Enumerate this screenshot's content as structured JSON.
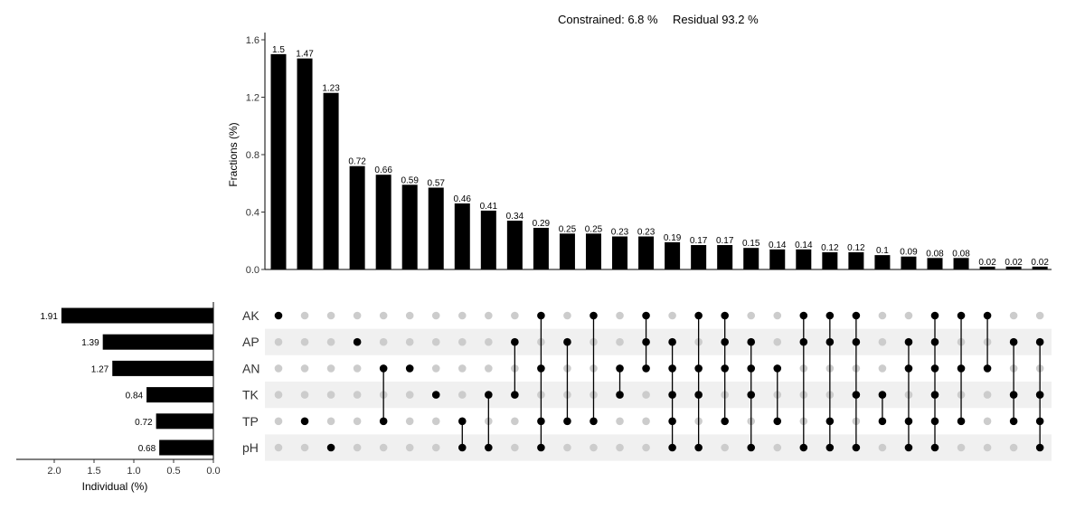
{
  "header": {
    "constrained_text": "Constrained: 6.8 %",
    "residual_text": "Residual 93.2 %"
  },
  "chart_data": {
    "type": "bar",
    "title": "",
    "ylabel": "Fractions (%)",
    "ylim": [
      0,
      1.6
    ],
    "yticks": [
      "0.0",
      "0.4",
      "0.8",
      "1.2",
      "1.6"
    ],
    "intersections": [
      {
        "value": 1.5,
        "label": "1.5",
        "sets": [
          "AK"
        ]
      },
      {
        "value": 1.47,
        "label": "1.47",
        "sets": [
          "TP"
        ]
      },
      {
        "value": 1.23,
        "label": "1.23",
        "sets": [
          "pH"
        ]
      },
      {
        "value": 0.72,
        "label": "0.72",
        "sets": [
          "AP"
        ]
      },
      {
        "value": 0.66,
        "label": "0.66",
        "sets": [
          "AN",
          "TP"
        ]
      },
      {
        "value": 0.59,
        "label": "0.59",
        "sets": [
          "AN"
        ]
      },
      {
        "value": 0.57,
        "label": "0.57",
        "sets": [
          "TK"
        ]
      },
      {
        "value": 0.46,
        "label": "0.46",
        "sets": [
          "TP",
          "pH"
        ]
      },
      {
        "value": 0.41,
        "label": "0.41",
        "sets": [
          "TK",
          "pH"
        ]
      },
      {
        "value": 0.34,
        "label": "0.34",
        "sets": [
          "AP",
          "TK"
        ]
      },
      {
        "value": 0.29,
        "label": "0.29",
        "sets": [
          "AK",
          "AN",
          "TP",
          "pH"
        ]
      },
      {
        "value": 0.25,
        "label": "0.25",
        "sets": [
          "AP",
          "TP"
        ]
      },
      {
        "value": 0.25,
        "label": "0.25",
        "sets": [
          "AK",
          "TP"
        ]
      },
      {
        "value": 0.23,
        "label": "0.23",
        "sets": [
          "AN",
          "TK"
        ]
      },
      {
        "value": 0.23,
        "label": "0.23",
        "sets": [
          "AK",
          "AP",
          "AN"
        ]
      },
      {
        "value": 0.19,
        "label": "0.19",
        "sets": [
          "AP",
          "AN",
          "TK",
          "TP",
          "pH"
        ]
      },
      {
        "value": 0.17,
        "label": "0.17",
        "sets": [
          "AK",
          "AN",
          "TK",
          "pH"
        ]
      },
      {
        "value": 0.17,
        "label": "0.17",
        "sets": [
          "AK",
          "AP",
          "AN",
          "TP"
        ]
      },
      {
        "value": 0.15,
        "label": "0.15",
        "sets": [
          "AP",
          "AN",
          "TK",
          "pH"
        ]
      },
      {
        "value": 0.14,
        "label": "0.14",
        "sets": [
          "AN",
          "TP"
        ]
      },
      {
        "value": 0.14,
        "label": "0.14",
        "sets": [
          "AK",
          "AP",
          "pH"
        ]
      },
      {
        "value": 0.12,
        "label": "0.12",
        "sets": [
          "AK",
          "AP",
          "TP",
          "pH"
        ]
      },
      {
        "value": 0.12,
        "label": "0.12",
        "sets": [
          "AK",
          "AP",
          "TK",
          "pH"
        ]
      },
      {
        "value": 0.1,
        "label": "0.1",
        "sets": [
          "TK",
          "TP"
        ]
      },
      {
        "value": 0.09,
        "label": "0.09",
        "sets": [
          "AP",
          "AN",
          "TP",
          "pH"
        ]
      },
      {
        "value": 0.08,
        "label": "0.08",
        "sets": [
          "AK",
          "AP",
          "AN",
          "TK",
          "TP",
          "pH"
        ]
      },
      {
        "value": 0.08,
        "label": "0.08",
        "sets": [
          "AK",
          "AN",
          "TP"
        ]
      },
      {
        "value": 0.02,
        "label": "0.02",
        "sets": [
          "AK",
          "AN"
        ]
      },
      {
        "value": 0.02,
        "label": "0.02",
        "sets": [
          "AP",
          "TK",
          "TP"
        ]
      },
      {
        "value": 0.02,
        "label": "0.02",
        "sets": [
          "AP",
          "TK",
          "TP",
          "pH"
        ]
      }
    ],
    "sets": [
      {
        "name": "AK",
        "value": 1.91,
        "label": "1.91"
      },
      {
        "name": "AP",
        "value": 1.39,
        "label": "1.39"
      },
      {
        "name": "AN",
        "value": 1.27,
        "label": "1.27"
      },
      {
        "name": "TK",
        "value": 0.84,
        "label": "0.84"
      },
      {
        "name": "TP",
        "value": 0.72,
        "label": "0.72"
      },
      {
        "name": "pH",
        "value": 0.68,
        "label": "0.68"
      }
    ],
    "individual_axis": {
      "title": "Individual (%)",
      "ticks": [
        2.0,
        1.5,
        1.0,
        0.5,
        0.0
      ],
      "tick_labels": [
        "2.0",
        "1.5",
        "1.0",
        "0.5",
        "0.0"
      ],
      "xlim": [
        0,
        2.0
      ]
    },
    "colors": {
      "bar": "#000000",
      "dot_active": "#000000",
      "dot_inactive": "#cccccc",
      "stripe": "#f0f0f0"
    }
  }
}
